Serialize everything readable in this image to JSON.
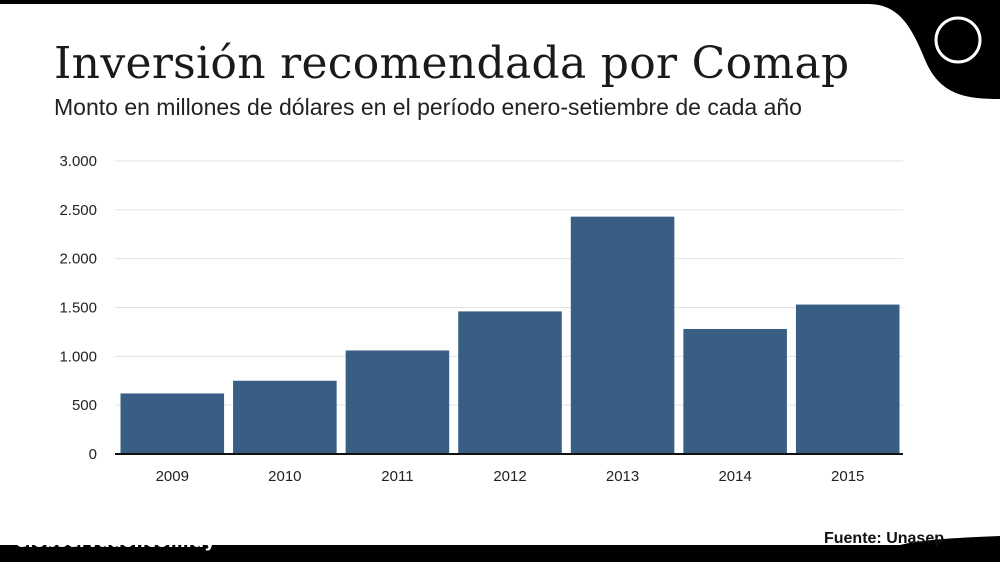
{
  "title": "Inversión recomendada por Comap",
  "subtitle": "Monto en millones de dólares en el período enero-setiembre de cada año",
  "footer": {
    "site": "elobservador.com.uy",
    "source": "Fuente: Unasep"
  },
  "colors": {
    "bar": "#385f83",
    "background": "#ffffff",
    "frame": "#000000"
  },
  "chart_data": {
    "type": "bar",
    "categories": [
      "2009",
      "2010",
      "2011",
      "2012",
      "2013",
      "2014",
      "2015"
    ],
    "values": [
      620,
      750,
      1060,
      1460,
      2430,
      1280,
      1530
    ],
    "ylim": [
      0,
      3000
    ],
    "yticks": [
      0,
      500,
      1000,
      1500,
      2000,
      2500,
      3000
    ],
    "ytick_labels": [
      "0",
      "500",
      "1.000",
      "1.500",
      "2.000",
      "2.500",
      "3.000"
    ],
    "grid": true
  }
}
